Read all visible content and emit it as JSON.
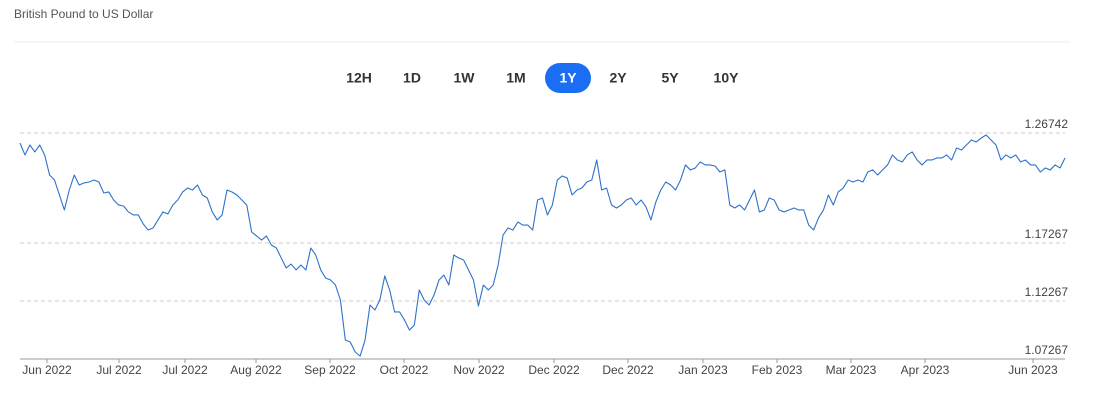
{
  "header": {
    "title": "British Pound to US Dollar"
  },
  "range_buttons": [
    {
      "label": "12H",
      "selected": false
    },
    {
      "label": "1D",
      "selected": false
    },
    {
      "label": "1W",
      "selected": false
    },
    {
      "label": "1M",
      "selected": false
    },
    {
      "label": "1Y",
      "selected": true
    },
    {
      "label": "2Y",
      "selected": false
    },
    {
      "label": "5Y",
      "selected": false
    },
    {
      "label": "10Y",
      "selected": false
    }
  ],
  "chart_data": {
    "type": "line",
    "x_labels": [
      "Jun 2022",
      "Jul 2022",
      "Jul 2022",
      "Aug 2022",
      "Sep 2022",
      "Oct 2022",
      "Nov 2022",
      "Dec 2022",
      "Dec 2022",
      "Jan 2023",
      "Feb 2023",
      "Mar 2023",
      "Apr 2023",
      "Jun 2023"
    ],
    "series": [
      {
        "name": "GBP/USD",
        "color": "#2f72c9",
        "values": [
          1.2588,
          1.2485,
          1.2571,
          1.2511,
          1.2571,
          1.2485,
          1.2312,
          1.2269,
          1.214,
          1.2011,
          1.2183,
          1.2312,
          1.2226,
          1.2244,
          1.2252,
          1.2269,
          1.2252,
          1.2157,
          1.2166,
          1.2097,
          1.2054,
          1.2045,
          1.1994,
          1.1968,
          1.1968,
          1.189,
          1.1838,
          1.1856,
          1.1925,
          1.1994,
          1.1976,
          1.2054,
          1.2097,
          1.2166,
          1.22,
          1.2183,
          1.2226,
          1.214,
          1.2114,
          1.1994,
          1.1925,
          1.1968,
          1.2183,
          1.2166,
          1.214,
          1.2097,
          1.2054,
          1.1821,
          1.1787,
          1.1752,
          1.1787,
          1.1709,
          1.1683,
          1.1597,
          1.1511,
          1.1545,
          1.1494,
          1.1537,
          1.1494,
          1.1683,
          1.1623,
          1.1494,
          1.1425,
          1.1407,
          1.1364,
          1.1235,
          1.089,
          1.0873,
          1.0787,
          1.0752,
          1.089,
          1.1192,
          1.1149,
          1.1235,
          1.1442,
          1.1321,
          1.1132,
          1.1132,
          1.1063,
          1.0976,
          1.1019,
          1.1321,
          1.1235,
          1.1192,
          1.1278,
          1.1407,
          1.145,
          1.1364,
          1.1623,
          1.1597,
          1.158,
          1.1494,
          1.1407,
          1.1183,
          1.1364,
          1.1321,
          1.1364,
          1.1537,
          1.1795,
          1.1856,
          1.1838,
          1.1907,
          1.1881,
          1.1881,
          1.1838,
          1.2097,
          1.2114,
          1.1968,
          1.2054,
          1.2269,
          1.2304,
          1.2287,
          1.214,
          1.2183,
          1.22,
          1.2252,
          1.2269,
          1.2442,
          1.2183,
          1.22,
          1.2054,
          1.2028,
          1.2054,
          1.2097,
          1.2114,
          1.2054,
          1.2097,
          1.2037,
          1.1925,
          1.208,
          1.2183,
          1.2252,
          1.2226,
          1.2183,
          1.2269,
          1.2399,
          1.2356,
          1.2373,
          1.2425,
          1.2399,
          1.2399,
          1.239,
          1.2338,
          1.2356,
          1.2054,
          1.2028,
          1.2054,
          1.2011,
          1.2097,
          1.2183,
          1.1994,
          1.2011,
          1.2114,
          1.2097,
          1.2011,
          1.1994,
          1.2011,
          1.2028,
          1.2011,
          1.2011,
          1.1881,
          1.1838,
          1.1942,
          1.2011,
          1.214,
          1.2054,
          1.2166,
          1.22,
          1.2269,
          1.2252,
          1.2269,
          1.2252,
          1.2338,
          1.2356,
          1.2312,
          1.2356,
          1.2399,
          1.2485,
          1.2442,
          1.2425,
          1.2485,
          1.2511,
          1.2442,
          1.2399,
          1.2442,
          1.2442,
          1.2459,
          1.2459,
          1.2485,
          1.2442,
          1.2545,
          1.2528,
          1.2571,
          1.2614,
          1.2597,
          1.2631,
          1.2657,
          1.2614,
          1.2571,
          1.2442,
          1.2485,
          1.2459,
          1.2485,
          1.2425,
          1.2442,
          1.2399,
          1.2399,
          1.2338,
          1.2373,
          1.2356,
          1.2399,
          1.2373,
          1.2459
        ]
      }
    ],
    "ylim": [
      1.07267,
      1.26742
    ],
    "yticks": [
      1.07267,
      1.12267,
      1.17267,
      1.26742
    ],
    "grid": true
  }
}
